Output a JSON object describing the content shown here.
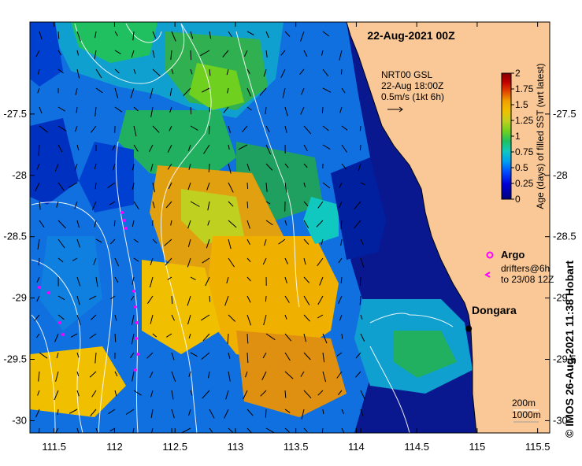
{
  "map": {
    "title": "22-Aug-2021 00Z",
    "lon_ticks": [
      "111.5",
      "112",
      "112.5",
      "113",
      "113.5",
      "114",
      "114.5",
      "115",
      "115.5"
    ],
    "lat_ticks": [
      "-27.5",
      "-28",
      "-28.5",
      "-29",
      "-29.5",
      "-30"
    ],
    "lon_range": [
      111.3,
      115.6
    ],
    "lat_range": [
      -30.1,
      -26.75
    ],
    "current_legend": {
      "line1": "NRT00 GSL",
      "line2": "22-Aug 18:00Z",
      "line3": "0.5m/s (1kt 6h)"
    },
    "colorbar": {
      "title": "Age (days) of filled SST (wrt latest)",
      "ticks": [
        "2",
        "1.75",
        "1.5",
        "1.25",
        "1",
        "0.75",
        "0.5",
        "0.25",
        "0"
      ],
      "range": [
        0,
        2
      ],
      "colors": [
        "#00007a",
        "#0000d8",
        "#0050ff",
        "#00a0f0",
        "#10c8c0",
        "#20c060",
        "#70d020",
        "#c0d020",
        "#f0c000",
        "#f0a000",
        "#e04000",
        "#c00000",
        "#800000"
      ]
    },
    "argo_label": "Argo",
    "drifters_line1": "drifters@6h",
    "drifters_line2": "to 23/08 12Z",
    "town": {
      "name": "Dongara",
      "lon": 114.93,
      "lat": -29.25
    },
    "depth_1": "200m",
    "depth_2": "1000m",
    "credit": "© IMOS 26-Aug-2021 11:38 Hobart",
    "land_color": "#fac896",
    "coast_color": "#000000"
  }
}
